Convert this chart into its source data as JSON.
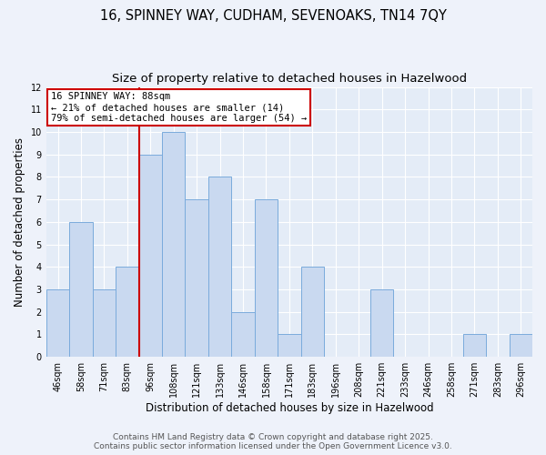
{
  "title1": "16, SPINNEY WAY, CUDHAM, SEVENOAKS, TN14 7QY",
  "title2": "Size of property relative to detached houses in Hazelwood",
  "xlabel": "Distribution of detached houses by size in Hazelwood",
  "ylabel": "Number of detached properties",
  "categories": [
    "46sqm",
    "58sqm",
    "71sqm",
    "83sqm",
    "96sqm",
    "108sqm",
    "121sqm",
    "133sqm",
    "146sqm",
    "158sqm",
    "171sqm",
    "183sqm",
    "196sqm",
    "208sqm",
    "221sqm",
    "233sqm",
    "246sqm",
    "258sqm",
    "271sqm",
    "283sqm",
    "296sqm"
  ],
  "values": [
    3,
    6,
    3,
    4,
    9,
    10,
    7,
    8,
    2,
    7,
    1,
    4,
    0,
    0,
    3,
    0,
    0,
    0,
    1,
    0,
    1
  ],
  "bar_color": "#c9d9f0",
  "bar_edge_color": "#7aabdc",
  "ref_line_index": 3,
  "ref_line_color": "#cc0000",
  "annotation_box_color": "#cc0000",
  "annotation_text_line1": "16 SPINNEY WAY: 88sqm",
  "annotation_text_line2": "← 21% of detached houses are smaller (14)",
  "annotation_text_line3": "79% of semi-detached houses are larger (54) →",
  "ylim": [
    0,
    12
  ],
  "yticks": [
    0,
    1,
    2,
    3,
    4,
    5,
    6,
    7,
    8,
    9,
    10,
    11,
    12
  ],
  "footer1": "Contains HM Land Registry data © Crown copyright and database right 2025.",
  "footer2": "Contains public sector information licensed under the Open Government Licence v3.0.",
  "bg_color": "#eef2fa",
  "plot_bg_color": "#e4ecf7",
  "grid_color": "#ffffff",
  "title1_fontsize": 10.5,
  "title2_fontsize": 9.5,
  "xlabel_fontsize": 8.5,
  "ylabel_fontsize": 8.5,
  "tick_fontsize": 7,
  "annotation_fontsize": 7.5,
  "footer_fontsize": 6.5
}
